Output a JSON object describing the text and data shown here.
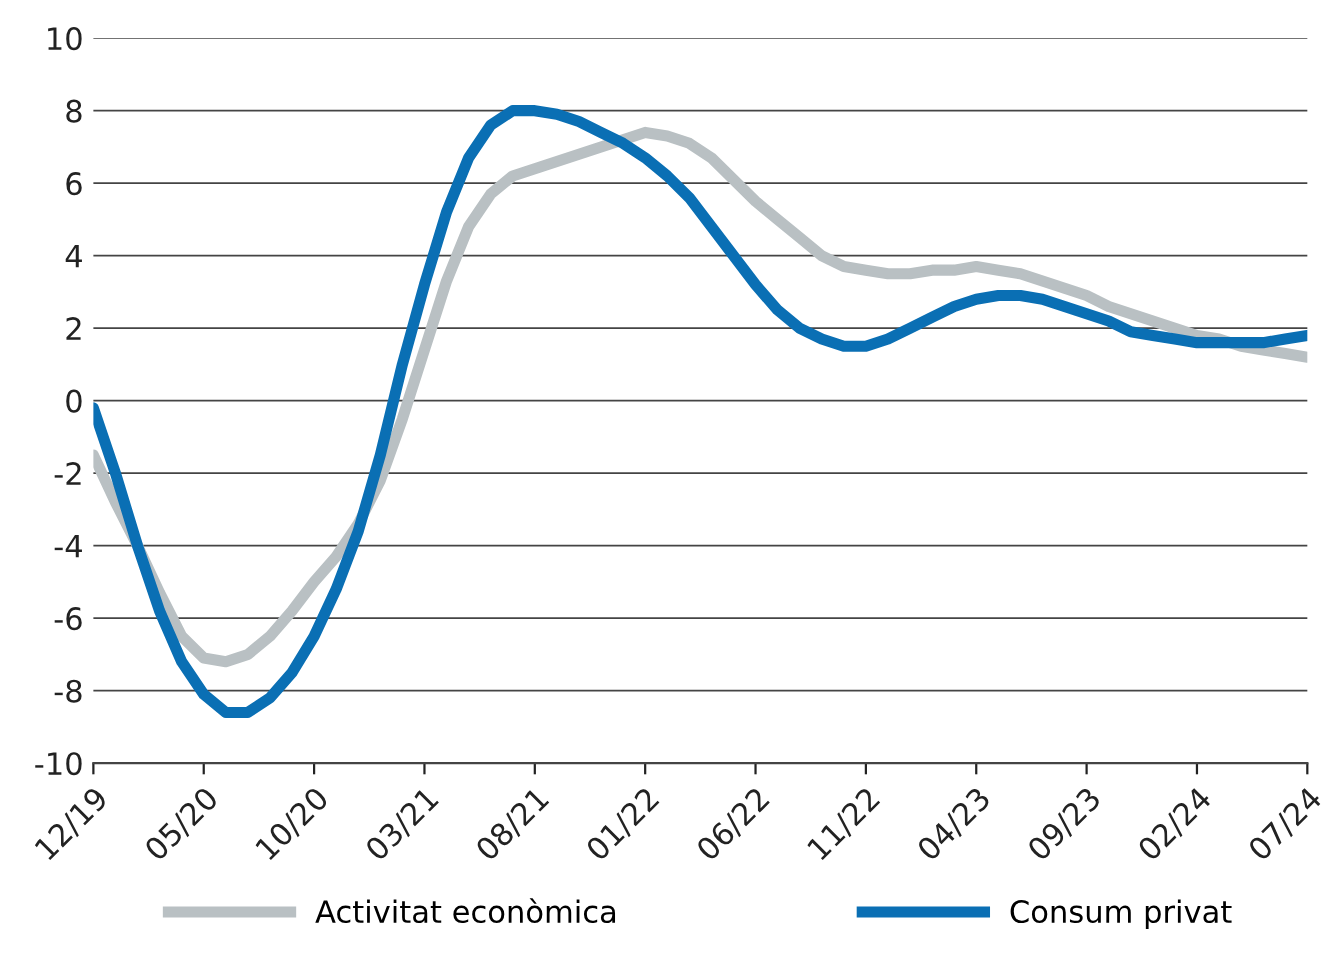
{
  "chart_data": {
    "type": "line",
    "categories": [
      "12/19",
      null,
      null,
      null,
      null,
      "05/20",
      null,
      null,
      null,
      null,
      "10/20",
      null,
      null,
      null,
      null,
      "03/21",
      null,
      null,
      null,
      null,
      "08/21",
      null,
      null,
      null,
      null,
      "01/22",
      null,
      null,
      null,
      null,
      "06/22",
      null,
      null,
      null,
      null,
      "11/22",
      null,
      null,
      null,
      null,
      "04/23",
      null,
      null,
      null,
      null,
      "09/23",
      null,
      null,
      null,
      null,
      "02/24",
      null,
      null,
      null,
      null,
      "07/24"
    ],
    "series": [
      {
        "name": "Activitat econòmica",
        "color": "#b9c0c3",
        "values": [
          -1.5,
          -2.8,
          -4.0,
          -5.3,
          -6.5,
          -7.1,
          -7.2,
          -7.0,
          -6.5,
          -5.8,
          -5.0,
          -4.3,
          -3.4,
          -2.2,
          -0.5,
          1.4,
          3.3,
          4.8,
          5.7,
          6.2,
          6.4,
          6.6,
          6.8,
          7.0,
          7.2,
          7.4,
          7.3,
          7.1,
          6.7,
          6.1,
          5.5,
          5.0,
          4.5,
          4.0,
          3.7,
          3.6,
          3.5,
          3.5,
          3.6,
          3.6,
          3.7,
          3.6,
          3.5,
          3.3,
          3.1,
          2.9,
          2.6,
          2.4,
          2.2,
          2.0,
          1.8,
          1.7,
          1.5,
          1.4,
          1.3,
          1.2
        ]
      },
      {
        "name": "Consum privat",
        "color": "#0a6fb4",
        "values": [
          -0.2,
          -2.0,
          -4.0,
          -5.8,
          -7.2,
          -8.1,
          -8.6,
          -8.6,
          -8.2,
          -7.5,
          -6.5,
          -5.2,
          -3.6,
          -1.5,
          1.0,
          3.2,
          5.2,
          6.7,
          7.6,
          8.0,
          8.0,
          7.9,
          7.7,
          7.4,
          7.1,
          6.7,
          6.2,
          5.6,
          4.8,
          4.0,
          3.2,
          2.5,
          2.0,
          1.7,
          1.5,
          1.5,
          1.7,
          2.0,
          2.3,
          2.6,
          2.8,
          2.9,
          2.9,
          2.8,
          2.6,
          2.4,
          2.2,
          1.9,
          1.8,
          1.7,
          1.6,
          1.6,
          1.6,
          1.6,
          1.7,
          1.8
        ]
      }
    ],
    "ylim": [
      -10,
      10
    ],
    "yticks": [
      -10,
      -8,
      -6,
      -4,
      -2,
      0,
      2,
      4,
      6,
      8,
      10
    ],
    "grid": "y",
    "legend": "bottom",
    "line_style": "solid",
    "marker": "none"
  }
}
